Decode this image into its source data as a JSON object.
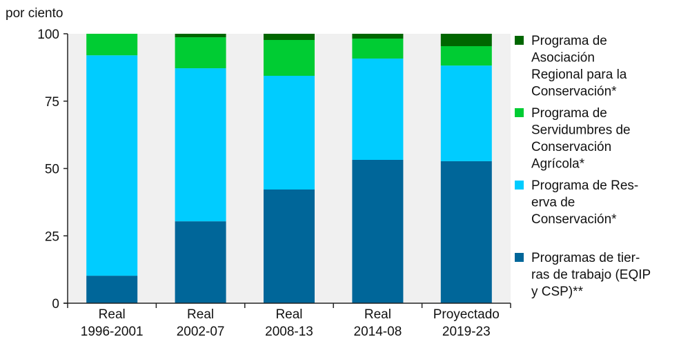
{
  "chart_data": {
    "type": "bar",
    "stacked": true,
    "ylabel": "por ciento",
    "ylim": [
      0,
      100
    ],
    "yticks": [
      0,
      25,
      50,
      75,
      100
    ],
    "categories": [
      [
        "Real",
        "1996-2001"
      ],
      [
        "Real",
        "2002-07"
      ],
      [
        "Real",
        "2008-13"
      ],
      [
        "Real",
        "2014-08"
      ],
      [
        "Proyectado",
        "2019-23"
      ]
    ],
    "series": [
      {
        "name": "Programas de tierras de trabajo (EQIP y CSP)**",
        "legend_lines": [
          "Programas de tier-",
          "ras de trabajo (EQIP",
          "y CSP)**"
        ],
        "color": "#006699",
        "values": [
          10.2,
          30.4,
          42.2,
          53.2,
          52.7
        ]
      },
      {
        "name": "Programa de Reserva de Conservación*",
        "legend_lines": [
          "Programa de Res-",
          "erva de",
          "Conservación*"
        ],
        "color": "#00ccff",
        "values": [
          81.8,
          56.8,
          42.2,
          37.6,
          35.5
        ]
      },
      {
        "name": "Programa de Servidumbres de Conservación Agrícola*",
        "legend_lines": [
          "Programa de",
          "Servidumbres de",
          "Conservación",
          "Agrícola*"
        ],
        "color": "#00cc33",
        "values": [
          8.0,
          11.5,
          13.3,
          7.4,
          7.2
        ]
      },
      {
        "name": "Programa de Asociación Regional para la Conservación*",
        "legend_lines": [
          "Programa de",
          "Asociación",
          "Regional para la",
          "Conservación*"
        ],
        "color": "#006600",
        "values": [
          0,
          1.3,
          2.3,
          1.8,
          4.6
        ]
      }
    ],
    "legend_position": "right",
    "background": "#f0f0f0"
  }
}
